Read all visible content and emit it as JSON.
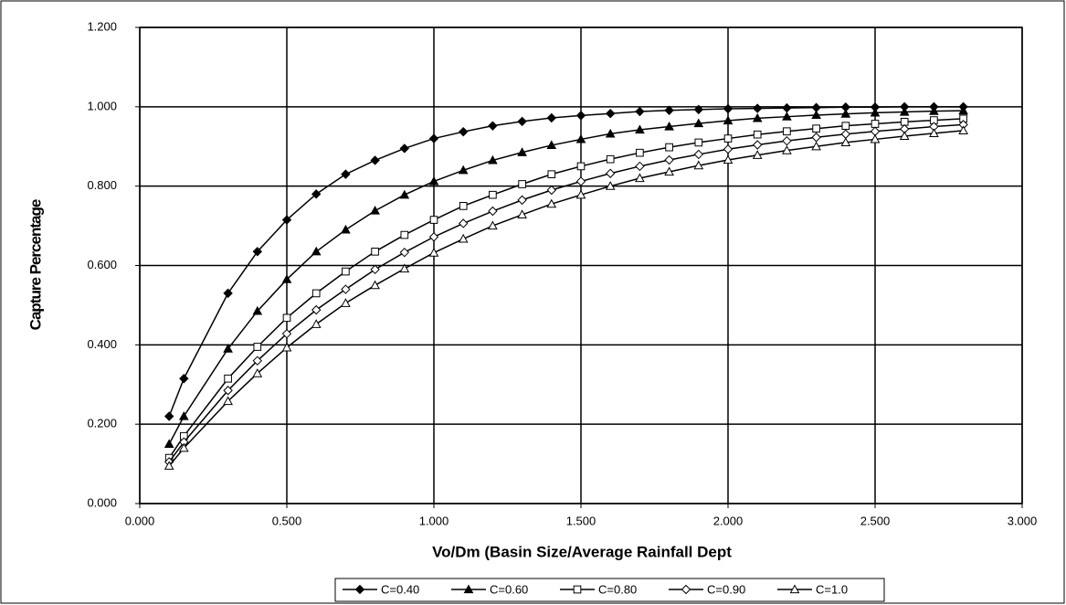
{
  "chart_data": {
    "type": "line",
    "xlabel": "Vo/Dm (Basin Size/Average Rainfall Dept",
    "ylabel": "Capture Percentage",
    "x": [
      0.1,
      0.15,
      0.3,
      0.4,
      0.5,
      0.6,
      0.7,
      0.8,
      0.9,
      1.0,
      1.1,
      1.2,
      1.3,
      1.4,
      1.5,
      1.6,
      1.7,
      1.8,
      1.9,
      2.0,
      2.1,
      2.2,
      2.3,
      2.4,
      2.5,
      2.6,
      2.7,
      2.8
    ],
    "series": [
      {
        "name": "C=0.40",
        "color": "#000000",
        "marker": "diamond",
        "filled": true,
        "values": [
          0.22,
          0.315,
          0.53,
          0.635,
          0.715,
          0.78,
          0.83,
          0.865,
          0.895,
          0.92,
          0.937,
          0.952,
          0.963,
          0.972,
          0.978,
          0.983,
          0.988,
          0.991,
          0.993,
          0.995,
          0.996,
          0.997,
          0.998,
          0.999,
          0.999,
          1.0,
          1.0,
          1.0
        ]
      },
      {
        "name": "C=0.60",
        "color": "#000000",
        "marker": "triangle",
        "filled": true,
        "values": [
          0.15,
          0.22,
          0.39,
          0.485,
          0.565,
          0.635,
          0.69,
          0.738,
          0.778,
          0.812,
          0.84,
          0.865,
          0.885,
          0.903,
          0.918,
          0.932,
          0.942,
          0.95,
          0.958,
          0.965,
          0.971,
          0.975,
          0.979,
          0.982,
          0.985,
          0.987,
          0.989,
          0.99
        ]
      },
      {
        "name": "C=0.80",
        "color": "#000000",
        "marker": "square",
        "filled": false,
        "values": [
          0.115,
          0.17,
          0.315,
          0.395,
          0.468,
          0.53,
          0.585,
          0.635,
          0.677,
          0.715,
          0.75,
          0.778,
          0.805,
          0.83,
          0.85,
          0.868,
          0.884,
          0.898,
          0.91,
          0.92,
          0.93,
          0.938,
          0.945,
          0.952,
          0.957,
          0.962,
          0.966,
          0.97
        ]
      },
      {
        "name": "C=0.90",
        "color": "#000000",
        "marker": "diamond",
        "filled": false,
        "values": [
          0.105,
          0.155,
          0.285,
          0.36,
          0.428,
          0.488,
          0.54,
          0.59,
          0.633,
          0.672,
          0.706,
          0.737,
          0.765,
          0.79,
          0.812,
          0.832,
          0.85,
          0.866,
          0.88,
          0.893,
          0.904,
          0.914,
          0.923,
          0.931,
          0.938,
          0.944,
          0.95,
          0.955
        ]
      },
      {
        "name": "C=1.0",
        "color": "#000000",
        "marker": "triangle",
        "filled": false,
        "values": [
          0.095,
          0.14,
          0.258,
          0.328,
          0.393,
          0.452,
          0.505,
          0.55,
          0.592,
          0.632,
          0.667,
          0.7,
          0.728,
          0.755,
          0.778,
          0.8,
          0.82,
          0.836,
          0.852,
          0.866,
          0.878,
          0.89,
          0.9,
          0.91,
          0.918,
          0.926,
          0.933,
          0.94
        ]
      }
    ],
    "xlim": [
      0,
      3
    ],
    "xticks": [
      {
        "value": 0,
        "label": "0.000"
      },
      {
        "value": 0.5,
        "label": "0.500"
      },
      {
        "value": 1,
        "label": "1.000"
      },
      {
        "value": 1.5,
        "label": "1.500"
      },
      {
        "value": 2,
        "label": "2.000"
      },
      {
        "value": 2.5,
        "label": "2.500"
      },
      {
        "value": 3,
        "label": "3.000"
      }
    ],
    "ylim": [
      0,
      1.2
    ],
    "yticks": [
      {
        "value": 0,
        "label": "0.000"
      },
      {
        "value": 0.2,
        "label": "0.200"
      },
      {
        "value": 0.4,
        "label": "0.400"
      },
      {
        "value": 0.6,
        "label": "0.600"
      },
      {
        "value": 0.8,
        "label": "0.800"
      },
      {
        "value": 1,
        "label": "1.000"
      },
      {
        "value": 1.2,
        "label": "1.200"
      }
    ],
    "grid": true,
    "legend": "bottom"
  }
}
